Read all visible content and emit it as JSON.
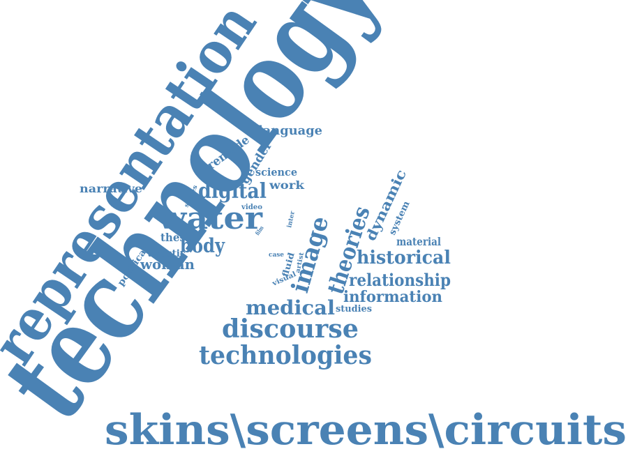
{
  "cloud": {
    "color": "#4a82b4",
    "words": {
      "technology": "technology",
      "representation": "representation",
      "skins": "skins\\screens\\circuits",
      "water": "water",
      "digital": "digital",
      "image": "image",
      "theories": "theories",
      "historical": "historical",
      "relationship": "relationship",
      "information": "information",
      "discourse": "discourse",
      "technologies": "technologies",
      "medical": "medical",
      "studies": "studies",
      "dynamic": "dynamic",
      "system": "system",
      "material": "material",
      "body": "body",
      "woman": "woman",
      "thesis": "thesis",
      "artistic": "artistic",
      "political": "political",
      "narrative": "narrative",
      "language": "language",
      "remade": "remade",
      "gender": "gender",
      "science": "science",
      "work": "work",
      "video": "video",
      "series": "series",
      "film": "film",
      "inter": "inter",
      "case": "case",
      "fluid": "fluid",
      "artist": "artist",
      "visual": "visual"
    }
  }
}
